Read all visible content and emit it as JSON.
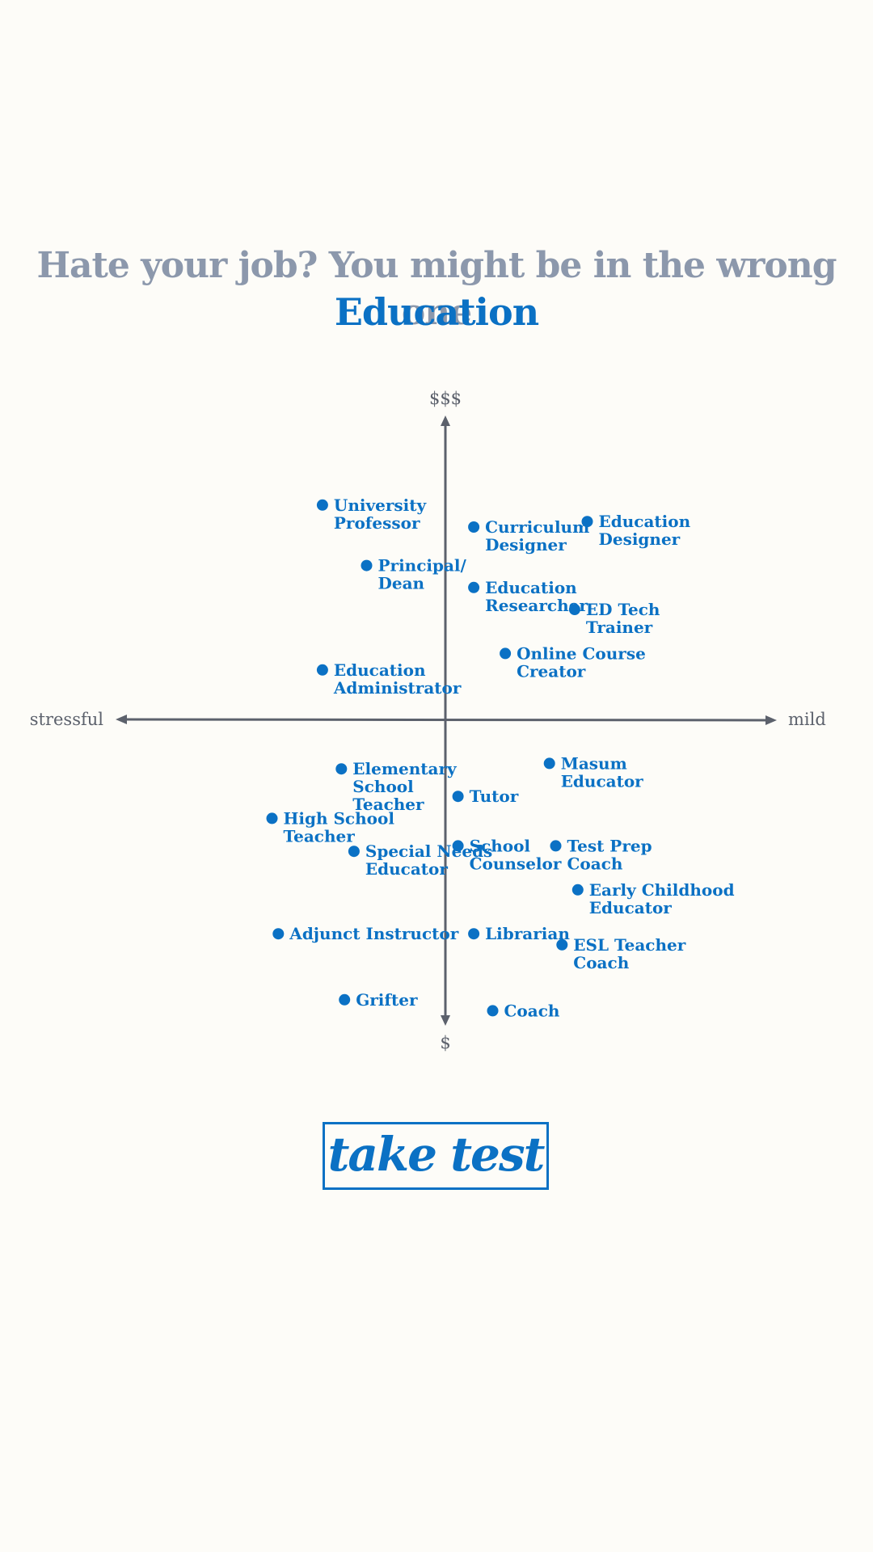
{
  "header": {
    "headline": "Hate your job? You might be in the wrong one",
    "category": "Education"
  },
  "chart_data": {
    "type": "scatter",
    "title": "",
    "x_axis": {
      "left_label": "stressful",
      "right_label": "mild",
      "range": [
        -5,
        5
      ]
    },
    "y_axis": {
      "top_label": "$$$",
      "bottom_label": "$",
      "range": [
        -5,
        5
      ]
    },
    "grid": false,
    "colors": {
      "point": "#0b71c4",
      "axis": "#5c616c"
    },
    "points": [
      {
        "label": "University Professor",
        "lines": [
          "University",
          "Professor"
        ],
        "x": -3.9,
        "y": 3.9
      },
      {
        "label": "Principal/ Dean",
        "lines": [
          "Principal/",
          "Dean"
        ],
        "x": -2.5,
        "y": 2.8
      },
      {
        "label": "Education Administrator",
        "lines": [
          "Education",
          "Administrator"
        ],
        "x": -3.9,
        "y": 0.9
      },
      {
        "label": "Curriculum Designer",
        "lines": [
          "Curriculum",
          "Designer"
        ],
        "x": 0.9,
        "y": 3.5
      },
      {
        "label": "Education Designer",
        "lines": [
          "Education",
          "Designer"
        ],
        "x": 4.5,
        "y": 3.6
      },
      {
        "label": "Education Researcher",
        "lines": [
          "Education",
          "Researcher"
        ],
        "x": 0.9,
        "y": 2.4
      },
      {
        "label": "ED Tech Trainer",
        "lines": [
          "ED Tech",
          "Trainer"
        ],
        "x": 4.1,
        "y": 2.0
      },
      {
        "label": "Online Course Creator",
        "lines": [
          "Online Course",
          "Creator"
        ],
        "x": 1.9,
        "y": 1.2
      },
      {
        "label": "Elementary School Teacher",
        "lines": [
          "Elementary",
          "School",
          "Teacher"
        ],
        "x": -3.3,
        "y": -0.9
      },
      {
        "label": "Masum Educator",
        "lines": [
          "Masum",
          "Educator"
        ],
        "x": 3.3,
        "y": -0.8
      },
      {
        "label": "Tutor",
        "lines": [
          "Tutor"
        ],
        "x": 0.4,
        "y": -1.4
      },
      {
        "label": "High School Teacher",
        "lines": [
          "High School",
          "Teacher"
        ],
        "x": -5.5,
        "y": -1.8
      },
      {
        "label": "Special Needs Educator",
        "lines": [
          "Special Needs",
          "Educator"
        ],
        "x": -2.9,
        "y": -2.4
      },
      {
        "label": "School Counselor",
        "lines": [
          "School",
          "Counselor"
        ],
        "x": 0.4,
        "y": -2.3
      },
      {
        "label": "Test Prep Coach",
        "lines": [
          "Test Prep",
          "Coach"
        ],
        "x": 3.5,
        "y": -2.3
      },
      {
        "label": "Early Childhood Educator",
        "lines": [
          "Early Childhood",
          "Educator"
        ],
        "x": 4.2,
        "y": -3.1
      },
      {
        "label": "Adjunct Instructor",
        "lines": [
          "Adjunct Instructor"
        ],
        "x": -5.3,
        "y": -3.9
      },
      {
        "label": "Librarian",
        "lines": [
          "Librarian"
        ],
        "x": 0.9,
        "y": -3.9
      },
      {
        "label": "ESL Teacher Coach",
        "lines": [
          "ESL Teacher",
          "Coach"
        ],
        "x": 3.7,
        "y": -4.1
      },
      {
        "label": "Grifter",
        "lines": [
          "Grifter"
        ],
        "x": -3.2,
        "y": -5.1
      },
      {
        "label": "Coach",
        "lines": [
          "Coach"
        ],
        "x": 1.5,
        "y": -5.3
      }
    ]
  },
  "cta": {
    "label": "take test"
  }
}
